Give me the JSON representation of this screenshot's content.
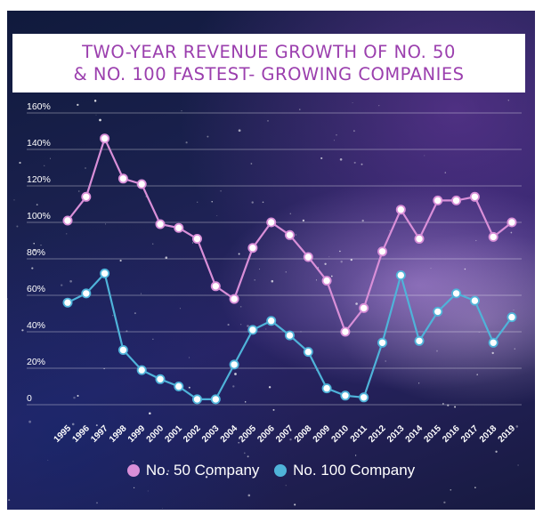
{
  "chart_data": {
    "type": "line",
    "title_lines": [
      "TWO-YEAR REVENUE GROWTH OF NO. 50",
      "& NO. 100 FASTEST- GROWING COMPANIES"
    ],
    "categories": [
      "1995",
      "1996",
      "1997",
      "1998",
      "1999",
      "2000",
      "2001",
      "2002",
      "2003",
      "2004",
      "2005",
      "2006",
      "2007",
      "2008",
      "2009",
      "2010",
      "2011",
      "2012",
      "2013",
      "2014",
      "2015",
      "2016",
      "2017",
      "2018",
      "2019"
    ],
    "y_ticks": [
      "0",
      "20%",
      "40%",
      "60%",
      "80%",
      "100%",
      "120%",
      "140%",
      "160%"
    ],
    "ylim": [
      0,
      160
    ],
    "grid": true,
    "legend_position": "bottom-center",
    "series": [
      {
        "name": "No. 50 Company",
        "color": "#d98fd8",
        "values": [
          101,
          114,
          146,
          124,
          121,
          99,
          97,
          91,
          65,
          58,
          86,
          100,
          93,
          81,
          68,
          40,
          53,
          84,
          107,
          91,
          112,
          112,
          114,
          92,
          100
        ]
      },
      {
        "name": "No. 100 Company",
        "color": "#4fb3d9",
        "values": [
          56,
          61,
          72,
          30,
          19,
          14,
          10,
          3,
          3,
          22,
          41,
          46,
          38,
          29,
          9,
          5,
          4,
          34,
          71,
          35,
          51,
          61,
          57,
          34,
          48
        ]
      }
    ]
  }
}
